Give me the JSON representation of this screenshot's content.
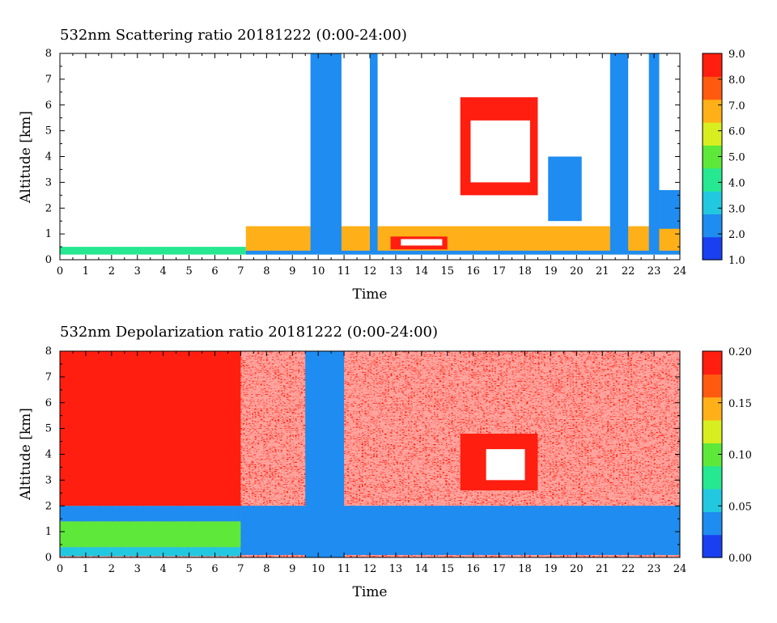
{
  "chart_data": [
    {
      "type": "heatmap",
      "title": "532nm Scattering ratio  20181222 (0:00-24:00)",
      "xlabel": "Time",
      "ylabel": "Altitude [km]",
      "xlim": [
        0,
        24
      ],
      "ylim": [
        0,
        8
      ],
      "x_ticks": [
        "0",
        "1",
        "2",
        "3",
        "4",
        "5",
        "6",
        "7",
        "8",
        "9",
        "10",
        "11",
        "12",
        "13",
        "14",
        "15",
        "16",
        "17",
        "18",
        "19",
        "20",
        "21",
        "22",
        "23",
        "24"
      ],
      "y_ticks": [
        "0",
        "1",
        "2",
        "3",
        "4",
        "5",
        "6",
        "7",
        "8"
      ],
      "colorbar": {
        "range": [
          1.0,
          9.0
        ],
        "ticks": [
          "1.0",
          "2.0",
          "3.0",
          "4.0",
          "5.0",
          "6.0",
          "7.0",
          "8.0",
          "9.0"
        ],
        "colors": [
          "#1a3ff0",
          "#1e8cf0",
          "#21c8e0",
          "#25e890",
          "#5ee83a",
          "#d8ee20",
          "#ffb018",
          "#ff5a10",
          "#ff1e10"
        ]
      },
      "features": [
        {
          "time": [
            0,
            7.2
          ],
          "altitude": [
            0.2,
            0.5
          ],
          "level": 4.0
        },
        {
          "time": [
            7.2,
            24
          ],
          "altitude": [
            0.2,
            1.3
          ],
          "level": 7.0
        },
        {
          "time": [
            12.8,
            15.0
          ],
          "altitude": [
            0.4,
            0.9
          ],
          "level": 9.0
        },
        {
          "time": [
            9.7,
            10.9
          ],
          "altitude": [
            0.3,
            8.0
          ],
          "level": 2.0
        },
        {
          "time": [
            12.0,
            12.3
          ],
          "altitude": [
            0.3,
            8.0
          ],
          "level": 2.0
        },
        {
          "time": [
            15.5,
            18.5
          ],
          "altitude": [
            2.5,
            6.3
          ],
          "level": 9.0
        },
        {
          "time": [
            18.9,
            20.2
          ],
          "altitude": [
            1.5,
            4.0
          ],
          "level": 2.0
        },
        {
          "time": [
            21.3,
            22.0
          ],
          "altitude": [
            0.3,
            8.0
          ],
          "level": 2.0
        },
        {
          "time": [
            22.8,
            23.2
          ],
          "altitude": [
            0.3,
            8.0
          ],
          "level": 2.0
        },
        {
          "time": [
            23.2,
            24.0
          ],
          "altitude": [
            1.2,
            2.7
          ],
          "level": 2.0
        }
      ]
    },
    {
      "type": "heatmap",
      "title": "532nm Depolarization ratio  20181222 (0:00-24:00)",
      "xlabel": "Time",
      "ylabel": "Altitude [km]",
      "xlim": [
        0,
        24
      ],
      "ylim": [
        0,
        8
      ],
      "x_ticks": [
        "0",
        "1",
        "2",
        "3",
        "4",
        "5",
        "6",
        "7",
        "8",
        "9",
        "10",
        "11",
        "12",
        "13",
        "14",
        "15",
        "16",
        "17",
        "18",
        "19",
        "20",
        "21",
        "22",
        "23",
        "24"
      ],
      "y_ticks": [
        "0",
        "1",
        "2",
        "3",
        "4",
        "5",
        "6",
        "7",
        "8"
      ],
      "colorbar": {
        "range": [
          0.0,
          0.2
        ],
        "ticks": [
          "0.00",
          "0.05",
          "0.10",
          "0.15",
          "0.20"
        ],
        "colors": [
          "#1a3ff0",
          "#1e8cf0",
          "#21c8e0",
          "#25e890",
          "#5ee83a",
          "#d8ee20",
          "#ffb018",
          "#ff5a10",
          "#ff1e10"
        ]
      },
      "features": [
        {
          "time": [
            0,
            7.0
          ],
          "altitude": [
            2.0,
            8.0
          ],
          "level": 0.2
        },
        {
          "time": [
            0,
            7.0
          ],
          "altitude": [
            0.4,
            1.4
          ],
          "level": 0.1
        },
        {
          "time": [
            9.5,
            11.0
          ],
          "altitude": [
            0.0,
            8.0
          ],
          "level": 0.04
        },
        {
          "time": [
            15.5,
            18.5
          ],
          "altitude": [
            2.6,
            4.8
          ],
          "level": 0.2
        },
        {
          "time": [
            7.0,
            24.0
          ],
          "altitude": [
            0.1,
            2.0
          ],
          "level": 0.04
        }
      ]
    }
  ]
}
